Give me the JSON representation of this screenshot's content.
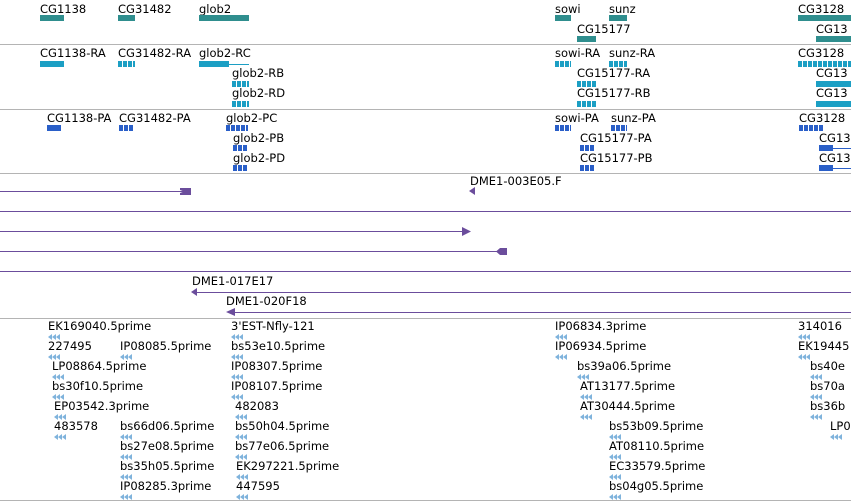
{
  "colors": {
    "gene": "#2f8e8e",
    "rna": "#1c9fc4",
    "protein": "#2a5fc8",
    "clone": "#6b4d9c",
    "est": "#7fb3dc",
    "separator": "#b4b4b4"
  },
  "tracks": {
    "genes": [
      {
        "label": "CG1138"
      },
      {
        "label": "CG31482"
      },
      {
        "label": "glob2"
      },
      {
        "label": "sowi"
      },
      {
        "label": "sunz"
      },
      {
        "label": "CG15177"
      },
      {
        "label": "CG3128"
      },
      {
        "label": "CG13"
      }
    ],
    "transcripts": [
      {
        "label": "CG1138-RA"
      },
      {
        "label": "CG31482-RA"
      },
      {
        "label": "glob2-RC"
      },
      {
        "label": "glob2-RB"
      },
      {
        "label": "glob2-RD"
      },
      {
        "label": "sowi-RA"
      },
      {
        "label": "sunz-RA"
      },
      {
        "label": "CG15177-RA"
      },
      {
        "label": "CG15177-RB"
      },
      {
        "label": "CG3128"
      },
      {
        "label": "CG13"
      },
      {
        "label": "CG13"
      }
    ],
    "proteins": [
      {
        "label": "CG1138-PA"
      },
      {
        "label": "CG31482-PA"
      },
      {
        "label": "glob2-PC"
      },
      {
        "label": "glob2-PB"
      },
      {
        "label": "glob2-PD"
      },
      {
        "label": "sowi-PA"
      },
      {
        "label": "sunz-PA"
      },
      {
        "label": "CG15177-PA"
      },
      {
        "label": "CG15177-PB"
      },
      {
        "label": "CG3128"
      },
      {
        "label": "CG13"
      },
      {
        "label": "CG13"
      }
    ],
    "clones": [
      {
        "label": "DME1-003E05.F"
      },
      {
        "label": "DME1-017E17"
      },
      {
        "label": "DME1-020F18"
      }
    ],
    "ests": [
      {
        "label": "EK169040.5prime"
      },
      {
        "label": "227495"
      },
      {
        "label": "IP08085.5prime"
      },
      {
        "label": "LP08864.5prime"
      },
      {
        "label": "bs30f10.5prime"
      },
      {
        "label": "EP03542.3prime"
      },
      {
        "label": "483578"
      },
      {
        "label": "bs66d06.5prime"
      },
      {
        "label": "bs27e08.5prime"
      },
      {
        "label": "bs35h05.5prime"
      },
      {
        "label": "IP08285.3prime"
      },
      {
        "label": "3'EST-Nfly-121"
      },
      {
        "label": "bs53e10.5prime"
      },
      {
        "label": "IP08307.5prime"
      },
      {
        "label": "IP08107.5prime"
      },
      {
        "label": "482083"
      },
      {
        "label": "bs50h04.5prime"
      },
      {
        "label": "bs77e06.5prime"
      },
      {
        "label": "EK297221.5prime"
      },
      {
        "label": "447595"
      },
      {
        "label": "IP06834.3prime"
      },
      {
        "label": "IP06934.5prime"
      },
      {
        "label": "bs39a06.5prime"
      },
      {
        "label": "AT13177.5prime"
      },
      {
        "label": "AT30444.5prime"
      },
      {
        "label": "bs53b09.5prime"
      },
      {
        "label": "AT08110.5prime"
      },
      {
        "label": "EC33579.5prime"
      },
      {
        "label": "bs04g05.5prime"
      },
      {
        "label": "314016"
      },
      {
        "label": "EK19445"
      },
      {
        "label": "bs40e"
      },
      {
        "label": "bs70a"
      },
      {
        "label": "bs36b"
      },
      {
        "label": "LP0"
      }
    ]
  }
}
